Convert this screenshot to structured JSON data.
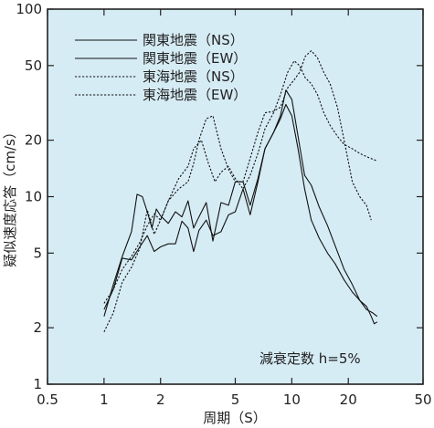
{
  "chart_data": {
    "type": "line",
    "title": "",
    "xlabel": "周期（S）",
    "ylabel": "疑似速度応答（cm/s）",
    "x_scale": "log",
    "y_scale": "log",
    "xlim": [
      0.5,
      50
    ],
    "ylim": [
      1,
      100
    ],
    "x_ticks": [
      0.5,
      1,
      2,
      5,
      10,
      20,
      50
    ],
    "x_tick_labels": [
      "0.5",
      "1",
      "2",
      "5",
      "10",
      "20",
      "50"
    ],
    "y_ticks": [
      1,
      2,
      5,
      10,
      20,
      50,
      100
    ],
    "y_tick_labels": [
      "1",
      "2",
      "5",
      "10",
      "20",
      "50",
      "100"
    ],
    "background": "#d6ecf5",
    "legend_position": "top-left",
    "annotation": "減衰定数 h=5%",
    "series": [
      {
        "name": "関東地震（NS）",
        "style": "solid",
        "x": [
          1.0,
          1.12,
          1.25,
          1.4,
          1.5,
          1.6,
          1.7,
          1.8,
          1.9,
          2.0,
          2.2,
          2.4,
          2.6,
          2.8,
          3.0,
          3.2,
          3.5,
          3.8,
          4.2,
          4.6,
          5.0,
          5.5,
          6.0,
          6.6,
          7.2,
          8.0,
          8.7,
          9.3,
          10.0,
          10.8,
          11.7,
          12.7,
          14.0,
          15.5,
          17.0,
          19.0,
          21.0,
          23.0,
          25.0,
          27.0,
          28.5
        ],
        "y": [
          2.3,
          3.4,
          4.8,
          6.5,
          10.3,
          10.0,
          8.3,
          6.8,
          8.6,
          7.9,
          7.2,
          8.3,
          7.8,
          9.5,
          6.8,
          7.8,
          9.3,
          5.8,
          9.3,
          9.0,
          12.0,
          12.0,
          9.0,
          12.5,
          18.0,
          22.0,
          27.0,
          37.0,
          33.0,
          21.0,
          13.0,
          11.5,
          8.8,
          7.0,
          5.5,
          4.1,
          3.4,
          2.8,
          2.5,
          2.4,
          2.3
        ]
      },
      {
        "name": "関東地震（EW）",
        "style": "solid",
        "x": [
          1.0,
          1.12,
          1.25,
          1.4,
          1.55,
          1.7,
          1.85,
          2.0,
          2.2,
          2.4,
          2.6,
          2.8,
          3.0,
          3.2,
          3.5,
          3.8,
          4.2,
          4.6,
          5.0,
          5.5,
          6.0,
          6.6,
          7.2,
          8.0,
          8.7,
          9.3,
          10.0,
          10.8,
          11.7,
          12.7,
          14.0,
          15.5,
          17.0,
          19.0,
          21.0,
          23.0,
          25.0,
          26.5,
          27.5,
          28.5
        ],
        "y": [
          2.5,
          3.2,
          4.7,
          4.6,
          5.4,
          6.2,
          5.1,
          5.4,
          5.6,
          5.6,
          7.4,
          6.8,
          5.1,
          6.6,
          7.5,
          6.2,
          6.5,
          8.0,
          8.3,
          11.0,
          8.0,
          12.0,
          18.0,
          22.0,
          26.0,
          31.0,
          27.0,
          18.0,
          11.0,
          7.5,
          6.0,
          5.0,
          4.4,
          3.6,
          3.1,
          2.8,
          2.6,
          2.3,
          2.1,
          2.15
        ]
      },
      {
        "name": "東海地震（NS）",
        "style": "dotted",
        "x": [
          1.0,
          1.12,
          1.25,
          1.4,
          1.55,
          1.7,
          1.85,
          2.0,
          2.2,
          2.5,
          2.8,
          3.0,
          3.3,
          3.6,
          3.9,
          4.2,
          4.6,
          5.0,
          5.5,
          6.0,
          6.6,
          7.2,
          8.0,
          8.7,
          9.5,
          10.3,
          11.0,
          11.8,
          12.7,
          13.7,
          14.8,
          16.0,
          17.5,
          19.0,
          21.0,
          23.0,
          25.5,
          28.5
        ],
        "y": [
          1.9,
          2.4,
          3.5,
          4.2,
          5.3,
          8.5,
          6.3,
          7.5,
          9.5,
          12.5,
          14.5,
          18.0,
          20.0,
          15.0,
          12.0,
          13.5,
          14.5,
          12.5,
          11.0,
          13.0,
          17.0,
          23.0,
          28.0,
          35.0,
          46.0,
          53.0,
          50.0,
          43.0,
          40.0,
          35.0,
          28.0,
          24.0,
          21.0,
          19.0,
          18.0,
          17.0,
          16.2,
          15.5
        ]
      },
      {
        "name": "東海地震（EW）",
        "style": "dotted",
        "x": [
          1.0,
          1.12,
          1.25,
          1.4,
          1.55,
          1.7,
          1.85,
          2.0,
          2.2,
          2.5,
          2.8,
          3.0,
          3.2,
          3.5,
          3.8,
          4.2,
          4.6,
          5.0,
          5.5,
          6.0,
          6.6,
          7.2,
          8.0,
          8.7,
          9.5,
          10.3,
          11.0,
          11.8,
          12.7,
          13.7,
          14.8,
          16.0,
          17.5,
          19.0,
          21.0,
          23.0,
          25.0,
          26.5
        ],
        "y": [
          2.7,
          3.2,
          4.1,
          4.8,
          5.7,
          7.0,
          8.1,
          7.5,
          9.5,
          11.0,
          12.0,
          15.0,
          20.0,
          26.0,
          27.0,
          18.0,
          14.0,
          12.0,
          12.0,
          16.0,
          22.0,
          28.0,
          28.5,
          30.0,
          38.0,
          42.0,
          46.0,
          56.0,
          60.0,
          55.0,
          46.0,
          40.0,
          30.0,
          20.0,
          12.0,
          10.0,
          9.0,
          7.5
        ]
      }
    ]
  }
}
